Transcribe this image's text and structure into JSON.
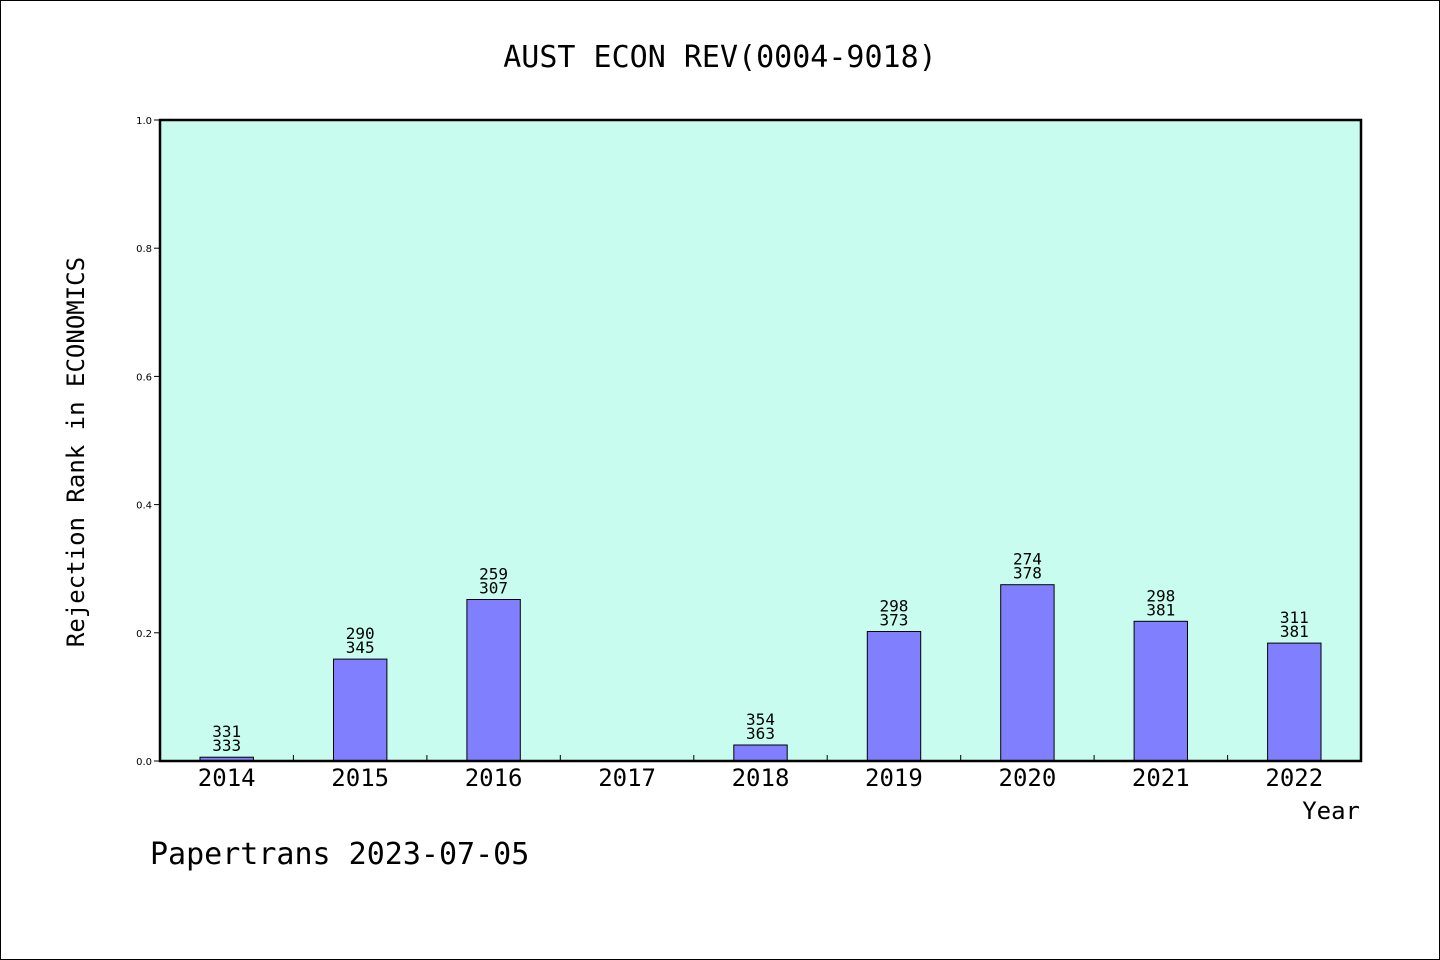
{
  "chart_data": {
    "type": "bar",
    "title": "AUST ECON REV(0004-9018)",
    "xlabel": "Year",
    "ylabel": "Rejection Rank in ECONOMICS",
    "ylim": [
      0.0,
      1.0
    ],
    "yticks": [
      "0.0",
      "0.2",
      "0.4",
      "0.6",
      "0.8",
      "1.0"
    ],
    "grid": false,
    "categories": [
      "2014",
      "2015",
      "2016",
      "2017",
      "2018",
      "2019",
      "2020",
      "2021",
      "2022"
    ],
    "values": [
      0.006,
      0.159,
      0.252,
      null,
      0.025,
      0.202,
      0.275,
      0.218,
      0.184
    ],
    "bar_labels": [
      [
        "331",
        "333"
      ],
      [
        "290",
        "345"
      ],
      [
        "259",
        "307"
      ],
      null,
      [
        "354",
        "363"
      ],
      [
        "298",
        "373"
      ],
      [
        "274",
        "378"
      ],
      [
        "298",
        "381"
      ],
      [
        "311",
        "381"
      ]
    ],
    "colors": {
      "plot_background": "#c8fcee",
      "bar_fill": "#8080ff",
      "bar_stroke": "#000000"
    }
  },
  "footer": "Papertrans 2023-07-05"
}
